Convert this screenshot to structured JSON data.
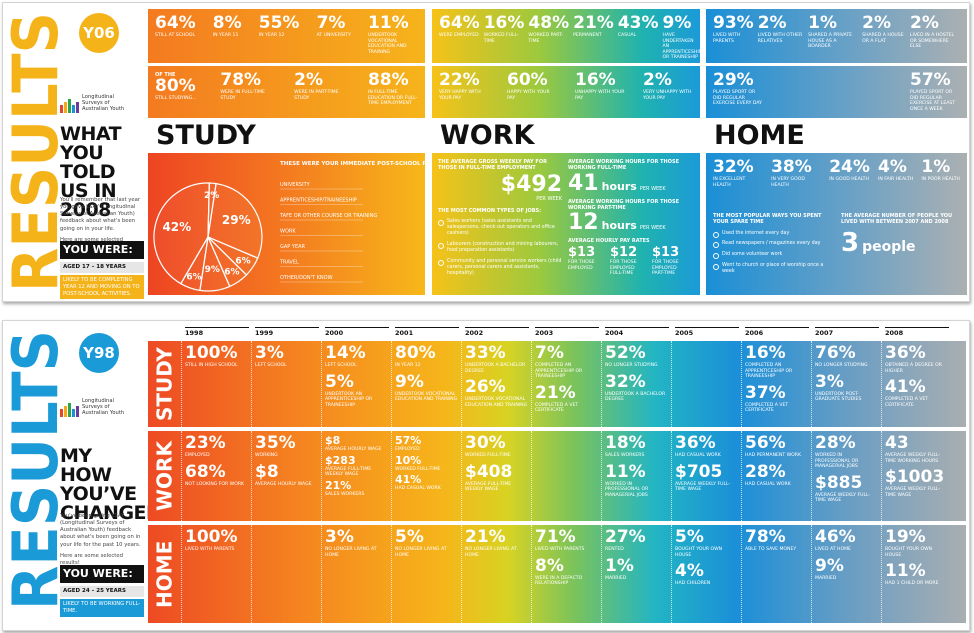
{
  "y06": {
    "banner": "RESULTS",
    "badge": "Y06",
    "logo": "Longitudinal Surveys of Australian Youth",
    "heading": "WHAT YOU TOLD US IN 2008",
    "intro": [
      "You'll remember that last year you gave LSAY (Longitudinal Surveys of Australian Youth) feedback about what's been going on in your life.",
      "Here are some selected results!"
    ],
    "you_were": "YOU WERE:",
    "age": "AGED 17 – 18 YEARS",
    "likely": "LIKELY TO BE COMPLETING YEAR 12 AND MOVING ON TO POST-SCHOOL ACTIVITIES.",
    "sections": [
      {
        "title": "STUDY",
        "row1": [
          {
            "v": "64%",
            "t": "STILL AT SCHOOL"
          },
          {
            "v": "8%",
            "t": "IN YEAR 11"
          },
          {
            "v": "55%",
            "t": "IN YEAR 12"
          },
          {
            "v": "7%",
            "t": "AT UNIVERSITY"
          },
          {
            "v": "11%",
            "t": "UNDERTOOK VOCATIONAL EDUCATION AND TRAINING"
          }
        ],
        "row2": [
          {
            "pre": "OF THE",
            "v": "80%",
            "t": "STILL STUDYING..."
          },
          {
            "v": "78%",
            "t": "WERE IN FULL-TIME STUDY"
          },
          {
            "v": "2%",
            "t": "WERE IN PART-TIME STUDY"
          },
          {
            "v": "88%",
            "t": "IN FULL-TIME EDUCATION OR FULL-TIME EMPLOYMENT"
          }
        ]
      },
      {
        "title": "WORK",
        "row1": [
          {
            "v": "64%",
            "t": "WERE EMPLOYED"
          },
          {
            "v": "16%",
            "t": "WORKED FULL-TIME"
          },
          {
            "v": "48%",
            "t": "WORKED PART-TIME"
          },
          {
            "v": "21%",
            "t": "PERMANENT"
          },
          {
            "v": "43%",
            "t": "CASUAL"
          },
          {
            "v": "9%",
            "t": "HAVE UNDERTAKEN AN APPRENTICESHIP OR TRAINESHIP"
          }
        ],
        "row2": [
          {
            "v": "22%",
            "t": "VERY HAPPY WITH YOUR PAY"
          },
          {
            "v": "60%",
            "t": "HAPPY WITH YOUR PAY"
          },
          {
            "v": "16%",
            "t": "UNHAPPY WITH YOUR PAY"
          },
          {
            "v": "2%",
            "t": "VERY UNHAPPY WITH YOUR PAY"
          }
        ]
      },
      {
        "title": "HOME",
        "row1": [
          {
            "v": "93%",
            "t": "LIVED WITH PARENTS"
          },
          {
            "v": "2%",
            "t": "LIVED WITH OTHER RELATIVES"
          },
          {
            "v": "1%",
            "t": "SHARED A PRIVATE HOUSE AS A BOARDER"
          },
          {
            "v": "2%",
            "t": "SHARED A HOUSE OR A FLAT"
          },
          {
            "v": "2%",
            "t": "LIVED IN A HOSTEL OR SOMEWHERE ELSE"
          }
        ],
        "row2": [
          {
            "v": "29%",
            "t": "PLAYED SPORT OR DID REGULAR EXERCISE EVERY DAY"
          },
          {
            "v": "57%",
            "t": "PLAYED SPORT OR DID REGULAR EXERCISE AT LEAST ONCE A WEEK"
          }
        ]
      }
    ],
    "study_box": {
      "title": "THESE WERE YOUR IMMEDIATE POST-SCHOOL PLANS",
      "slices": [
        {
          "value": 29,
          "label": "29%"
        },
        {
          "value": 6,
          "label": "6%"
        },
        {
          "value": 6,
          "label": "6%"
        },
        {
          "value": 9,
          "label": "9%"
        },
        {
          "value": 6,
          "label": "6%"
        },
        {
          "value": 42,
          "label": "42%"
        },
        {
          "value": 2,
          "label": "2%"
        }
      ],
      "legend": [
        "UNIVERSITY",
        "APPRENTICESHIP/TRAINEESHIP",
        "TAFE OR OTHER COURSE OR TRAINING",
        "WORK",
        "GAP YEAR",
        "TRAVEL",
        "OTHER/DON'T KNOW"
      ]
    },
    "work_box": {
      "pay_title": "THE AVERAGE GROSS WEEKLY PAY FOR THOSE IN FULL-TIME EMPLOYMENT",
      "pay": "$492",
      "pay_unit": "PER WEEK",
      "jobs_title": "THE MOST COMMON TYPES OF JOBS:",
      "jobs": [
        "Sales workers (sales assistants and salespersons, check-out operators and office cashiers)",
        "Labourers (construction and mining labourers, food preparation assistants)",
        "Community and personal service workers (child carers, personal carers and assistants, hospitality)"
      ],
      "hours": [
        {
          "title": "AVERAGE WORKING HOURS FOR THOSE WORKING FULL-TIME",
          "v": "41",
          "u": "hours",
          "t": "PER WEEK"
        },
        {
          "title": "AVERAGE WORKING HOURS FOR THOSE WORKING PART-TIME",
          "v": "12",
          "u": "hours",
          "t": "PER WEEK"
        }
      ],
      "rates_title": "AVERAGE HOURLY PAY RATES",
      "rates": [
        {
          "v": "$13",
          "t": "FOR THOSE EMPLOYED"
        },
        {
          "v": "$12",
          "t": "FOR THOSE EMPLOYED FULL-TIME"
        },
        {
          "v": "$13",
          "t": "FOR THOSE EMPLOYED PART-TIME"
        }
      ]
    },
    "home_box": {
      "health": [
        {
          "v": "32%",
          "t": "IN EXCELLENT HEALTH"
        },
        {
          "v": "38%",
          "t": "IN VERY GOOD HEALTH"
        },
        {
          "v": "24%",
          "t": "IN GOOD HEALTH"
        },
        {
          "v": "4%",
          "t": "IN FAIR HEALTH"
        },
        {
          "v": "1%",
          "t": "IN POOR HEALTH"
        }
      ],
      "spare_title": "THE MOST POPULAR WAYS YOU SPENT YOUR SPARE TIME",
      "spare": [
        "Used the internet every day",
        "Read newspapers / magazines every day",
        "Did some volunteer work",
        "Went to church or place of worship once a week"
      ],
      "lived_title": "THE AVERAGE NUMBER OF PEOPLE YOU LIVED WITH BETWEEN 2007 AND 2008",
      "lived": "3",
      "lived_unit": "people"
    }
  },
  "y98": {
    "banner": "RESULTS",
    "badge": "Y98",
    "logo": "Longitudinal Surveys of Australian Youth",
    "heading": "MY HOW YOU’VE CHANGED",
    "intro": [
      "You've been giving LSAY (Longitudinal Surveys of Australian Youth) feedback about what's been going on in your life for the past 10 years.",
      "Here are some selected results!"
    ],
    "you_were": "YOU WERE:",
    "age": "AGED 24 – 25 YEARS",
    "likely": "LIKELY TO BE WORKING FULL-TIME.",
    "years": [
      "1998",
      "1999",
      "2000",
      "2001",
      "2002",
      "2003",
      "2004",
      "2005",
      "2006",
      "2007",
      "2008"
    ],
    "rows": [
      {
        "title": "STUDY",
        "cells": [
          [
            {
              "v": "100%",
              "t": "STILL IN HIGH SCHOOL"
            }
          ],
          [
            {
              "v": "3%",
              "t": "LEFT SCHOOL"
            }
          ],
          [
            {
              "v": "14%",
              "t": "LEFT SCHOOL"
            },
            {
              "v": "5%",
              "t": "UNDERTOOK AN APPRENTICESHIP OR TRAINEESHIP"
            }
          ],
          [
            {
              "v": "80%",
              "t": "IN YEAR 12"
            },
            {
              "v": "9%",
              "t": "UNDERTOOK VOCATIONAL EDUCATION AND TRAINING"
            }
          ],
          [
            {
              "v": "33%",
              "t": "UNDERTOOK A BACHELOR DEGREE"
            },
            {
              "v": "26%",
              "t": "UNDERTOOK VOCATIONAL EDUCATION AND TRAINING"
            }
          ],
          [
            {
              "v": "7%",
              "t": "COMPLETED AN APPRENTICESHIP OR TRAINEESHIP"
            },
            {
              "v": "21%",
              "t": "COMPLETED A VET CERTIFICATE"
            }
          ],
          [
            {
              "v": "52%",
              "t": "NO LONGER STUDYING"
            },
            {
              "v": "32%",
              "t": "UNDERTOOK A BACHELOR DEGREE"
            }
          ],
          [],
          [
            {
              "v": "16%",
              "t": "COMPLETED AN APPRENTICESHIP OR TRAINEESHIP"
            },
            {
              "v": "37%",
              "t": "COMPLETED A VET CERTIFICATE"
            }
          ],
          [
            {
              "v": "76%",
              "t": "NO LONGER STUDYING"
            },
            {
              "v": "3%",
              "t": "UNDERTOOK POST-GRADUATE STUDIES"
            }
          ],
          [
            {
              "v": "36%",
              "t": "OBTAINED A DEGREE OR HIGHER"
            },
            {
              "v": "41%",
              "t": "COMPLETED A VET CERTIFICATE"
            }
          ]
        ]
      },
      {
        "title": "WORK",
        "cells": [
          [
            {
              "v": "23%",
              "t": "EMPLOYED"
            },
            {
              "v": "68%",
              "t": "NOT LOOKING FOR WORK"
            }
          ],
          [
            {
              "v": "35%",
              "t": "WORKING"
            },
            {
              "v": "$8",
              "t": "AVERAGE HOURLY WAGE"
            }
          ],
          [
            {
              "v": "$8",
              "t": "AVERAGE HOURLY WAGE"
            },
            {
              "v": "$283",
              "t": "AVERAGE FULL-TIME WEEKLY WAGE"
            },
            {
              "v": "21%",
              "t": "SALES WORKERS"
            }
          ],
          [
            {
              "v": "57%",
              "t": "EMPLOYED"
            },
            {
              "v": "10%",
              "t": "WORKED FULL-TIME"
            },
            {
              "v": "41%",
              "t": "HAD CASUAL WORK"
            }
          ],
          [
            {
              "v": "30%",
              "t": "WORKED FULL-TIME"
            },
            {
              "v": "$408",
              "t": "AVERAGE FULL-TIME WEEKLY WAGE"
            }
          ],
          [],
          [
            {
              "v": "18%",
              "t": "SALES WORKERS"
            },
            {
              "v": "11%",
              "t": "WORKED IN PROFESSIONAL OR MANAGERIAL JOBS"
            }
          ],
          [
            {
              "v": "36%",
              "t": "HAD CASUAL WORK"
            },
            {
              "v": "$705",
              "t": "AVERAGE WEEKLY FULL-TIME WAGE"
            }
          ],
          [
            {
              "v": "56%",
              "t": "HAD PERMANENT WORK"
            },
            {
              "v": "28%",
              "t": "HAD CASUAL WORK"
            }
          ],
          [
            {
              "v": "28%",
              "t": "WORKED IN PROFESSIONAL OR MANAGERIAL JOBS"
            },
            {
              "v": "$885",
              "t": "AVERAGE WEEKLY FULL-TIME WAGE"
            }
          ],
          [
            {
              "v": "43",
              "t": "AVERAGE WEEKLY FULL-TIME WORKING HOURS"
            },
            {
              "v": "$1003",
              "t": "AVERAGE WEEKLY FULL-TIME WAGE"
            }
          ]
        ]
      },
      {
        "title": "HOME",
        "cells": [
          [
            {
              "v": "100%",
              "t": "LIVED WITH PARENTS"
            }
          ],
          [],
          [
            {
              "v": "3%",
              "t": "NO LONGER LIVING AT HOME"
            }
          ],
          [
            {
              "v": "5%",
              "t": "NO LONGER LIVING AT HOME"
            }
          ],
          [
            {
              "v": "21%",
              "t": "NO LONGER LIVING AT HOME"
            }
          ],
          [
            {
              "v": "71%",
              "t": "LIVED WITH PARENTS"
            },
            {
              "v": "8%",
              "t": "WERE IN A DEFACTO RELATIONSHIP"
            }
          ],
          [
            {
              "v": "27%",
              "t": "RENTED"
            },
            {
              "v": "1%",
              "t": "MARRIED"
            }
          ],
          [
            {
              "v": "5%",
              "t": "BOUGHT YOUR OWN HOUSE"
            },
            {
              "v": "4%",
              "t": "HAD CHILDREN"
            }
          ],
          [
            {
              "v": "78%",
              "t": "ABLE TO SAVE MONEY"
            }
          ],
          [
            {
              "v": "46%",
              "t": "LIVED AT HOME"
            },
            {
              "v": "9%",
              "t": "MARRIED"
            }
          ],
          [
            {
              "v": "19%",
              "t": "BOUGHT YOUR OWN HOUSE"
            },
            {
              "v": "11%",
              "t": "HAD 1 CHILD OR MORE"
            }
          ]
        ]
      }
    ]
  }
}
